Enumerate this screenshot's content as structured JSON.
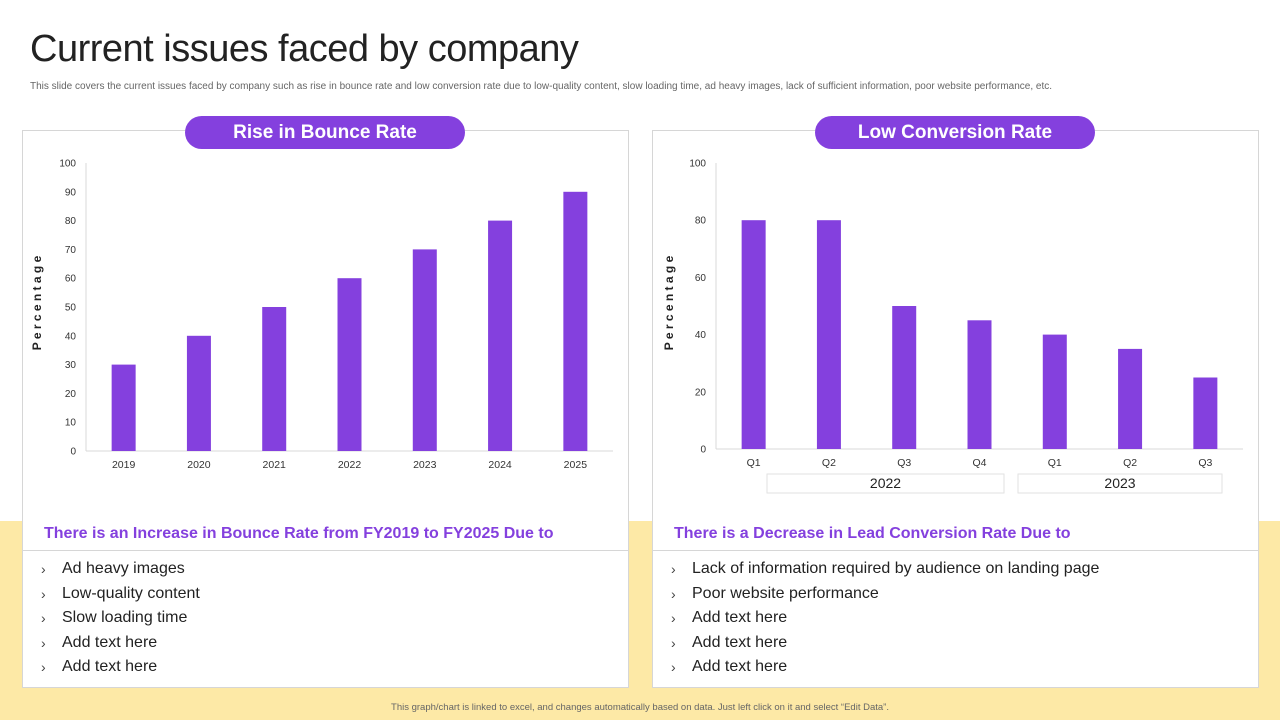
{
  "slide": {
    "title": "Current issues faced by company",
    "subtitle": "This slide covers the current issues faced by company such as rise in bounce rate and low conversion rate due to low-quality content, slow loading time,  ad heavy images, lack of sufficient information, poor website performance, etc.",
    "footnote": "This graph/chart is linked to excel, and changes automatically based on data. Just left click on it and select “Edit Data”."
  },
  "colors": {
    "accent": "#8440de",
    "band": "#fde9a6",
    "bar": "#8440de"
  },
  "left_panel": {
    "header": "Rise in Bounce Rate",
    "description": "There is an Increase in Bounce Rate from FY2019 to FY2025 Due to",
    "bullets": [
      "Ad heavy images",
      "Low-quality content",
      "Slow loading time",
      "Add text here",
      "Add text here"
    ]
  },
  "right_panel": {
    "header": "Low Conversion Rate",
    "description": "There is a Decrease in Lead Conversion Rate Due to",
    "bullets": [
      "Lack of information required by audience on landing page",
      "Poor website performance",
      "Add text here",
      "Add text here",
      "Add text here"
    ]
  },
  "bullet_icon": "chevron-right-icon",
  "chart_data": [
    {
      "type": "bar",
      "categories": [
        "2019",
        "2020",
        "2021",
        "2022",
        "2023",
        "2024",
        "2025"
      ],
      "values": [
        30,
        40,
        50,
        60,
        70,
        80,
        90
      ],
      "ylabel": "P e r c e n t a g e",
      "xlabel": "",
      "ylim": [
        0,
        100
      ],
      "yticks": [
        0,
        10,
        20,
        30,
        40,
        50,
        60,
        70,
        80,
        90,
        100
      ],
      "grid": false
    },
    {
      "type": "bar",
      "categories": [
        "Q1",
        "Q2",
        "Q3",
        "Q4",
        "Q1",
        "Q2",
        "Q3"
      ],
      "groups": [
        {
          "label": "2022",
          "span": 4
        },
        {
          "label": "2023",
          "span": 3
        }
      ],
      "values": [
        80,
        80,
        50,
        45,
        40,
        35,
        25
      ],
      "ylabel": "P e r c e n t a g e",
      "xlabel": "",
      "ylim": [
        0,
        100
      ],
      "yticks": [
        0,
        20,
        40,
        60,
        80,
        100
      ],
      "grid": false
    }
  ]
}
